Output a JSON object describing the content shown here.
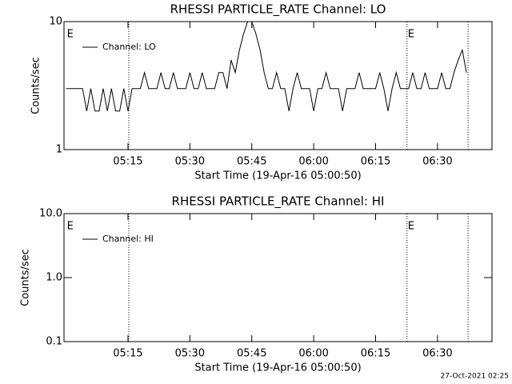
{
  "chart_data": [
    {
      "type": "line",
      "title": "RHESSI PARTICLE_RATE Channel: LO",
      "xlabel": "Start Time (19-Apr-16 05:00:50)",
      "ylabel": "Counts/sec",
      "yscale": "log",
      "ylim": [
        1,
        10
      ],
      "yticks": [
        1,
        10
      ],
      "xlim": [
        -0.5,
        103.2
      ],
      "xticks": [
        {
          "value": 15,
          "label": "05:15"
        },
        {
          "value": 30,
          "label": "05:30"
        },
        {
          "value": 45,
          "label": "05:45"
        },
        {
          "value": 60,
          "label": "06:00"
        },
        {
          "value": 75,
          "label": "06:15"
        },
        {
          "value": 90,
          "label": "06:30"
        }
      ],
      "vlines": [
        15.2,
        82.6,
        97.4
      ],
      "annotations": [
        {
          "text": "E",
          "x": 0
        },
        {
          "text": "E",
          "x": 82.6
        }
      ],
      "legend": "upper left",
      "x": [
        0,
        1,
        2,
        3,
        4,
        5,
        6,
        7,
        8,
        9,
        10,
        11,
        12,
        13,
        14,
        15,
        16,
        17,
        18,
        19,
        20,
        21,
        22,
        23,
        24,
        25,
        26,
        27,
        28,
        29,
        30,
        31,
        32,
        33,
        34,
        35,
        36,
        37,
        38,
        39,
        40,
        41,
        42,
        43,
        44,
        45,
        46,
        47,
        48,
        49,
        50,
        51,
        52,
        53,
        54,
        55,
        56,
        57,
        58,
        59,
        60,
        61,
        62,
        63,
        64,
        65,
        66,
        67,
        68,
        69,
        70,
        71,
        72,
        73,
        74,
        75,
        76,
        77,
        78,
        79,
        80,
        81,
        82,
        83,
        84,
        85,
        86,
        87,
        88,
        89,
        90,
        91,
        92,
        93,
        94,
        95,
        96,
        97
      ],
      "series": [
        {
          "name": "Channel: LO",
          "color": "#000000",
          "values": [
            3,
            3,
            3,
            3,
            3,
            2,
            3,
            2,
            2,
            3,
            2,
            3,
            2,
            2,
            3,
            2,
            3,
            3,
            3,
            4,
            3,
            3,
            3,
            4,
            3,
            3,
            4,
            3,
            3,
            3,
            4,
            3,
            3,
            4,
            3,
            3,
            3,
            4,
            4,
            3,
            5,
            4,
            6,
            8,
            10,
            10,
            8,
            6,
            4,
            3,
            3,
            4,
            3,
            3,
            2,
            3,
            4,
            3,
            3,
            3,
            2,
            3,
            3,
            4,
            3,
            3,
            3,
            2,
            3,
            3,
            3,
            4,
            3,
            3,
            3,
            3,
            4,
            3,
            2,
            3,
            4,
            3,
            3,
            3,
            4,
            3,
            3,
            4,
            3,
            3,
            3,
            4,
            3,
            3,
            4,
            5,
            6,
            4
          ]
        }
      ]
    },
    {
      "type": "line",
      "title": "RHESSI PARTICLE_RATE Channel: HI",
      "xlabel": "Start Time (19-Apr-16 05:00:50)",
      "ylabel": "Counts/sec",
      "yscale": "log",
      "ylim": [
        0.1,
        10
      ],
      "yticks": [
        0.1,
        {
          "value": 1,
          "label": "1.0"
        },
        {
          "value": 10,
          "label": "10.0"
        }
      ],
      "xlim": [
        -0.5,
        103.2
      ],
      "xticks": [
        {
          "value": 15,
          "label": "05:15"
        },
        {
          "value": 30,
          "label": "05:30"
        },
        {
          "value": 45,
          "label": "05:45"
        },
        {
          "value": 60,
          "label": "06:00"
        },
        {
          "value": 75,
          "label": "06:15"
        },
        {
          "value": 90,
          "label": "06:30"
        }
      ],
      "vlines": [
        15.2,
        82.6,
        97.4
      ],
      "annotations": [
        {
          "text": "E",
          "x": 0
        },
        {
          "text": "E",
          "x": 82.6
        }
      ],
      "legend": "upper left",
      "series": [
        {
          "name": "Channel: HI",
          "color": "#000000"
        }
      ]
    }
  ],
  "footer": "27-Oct-2021 02:25"
}
